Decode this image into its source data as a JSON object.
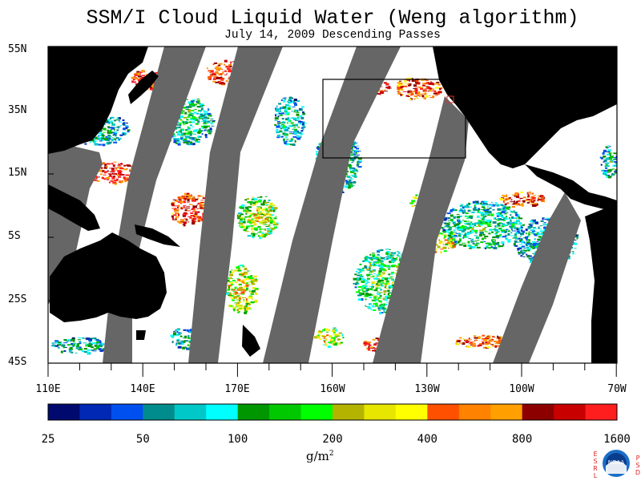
{
  "title": "SSM/I Cloud Liquid Water (Weng algorithm)",
  "subtitle": "July 14, 2009  Descending Passes",
  "lat_labels": [
    "55N",
    "35N",
    "15N",
    "5S",
    "25S",
    "45S"
  ],
  "lon_labels": [
    "110E",
    "140E",
    "170E",
    "160W",
    "130W",
    "100W",
    "70W"
  ],
  "colorbar": {
    "colors": [
      "#000a6e",
      "#0028b4",
      "#0050f0",
      "#008c8c",
      "#00c8c8",
      "#00ffff",
      "#009600",
      "#00c800",
      "#00ff00",
      "#b4b400",
      "#e6e600",
      "#ffff00",
      "#ff5000",
      "#ff8200",
      "#ffa000",
      "#8c0000",
      "#c80000",
      "#ff1e1e"
    ],
    "tick_labels": [
      "25",
      "50",
      "100",
      "200",
      "400",
      "800",
      "1600"
    ],
    "unit": "g/m",
    "unit_exponent": "2"
  },
  "logo": {
    "center_text": "NOAA",
    "left_text": "ESRL",
    "right_text": "PSD"
  },
  "colors": {
    "land": "#000000",
    "no_data_swath_gap": "#666666",
    "clear": "#ffffff",
    "inset_box": "#000000"
  }
}
